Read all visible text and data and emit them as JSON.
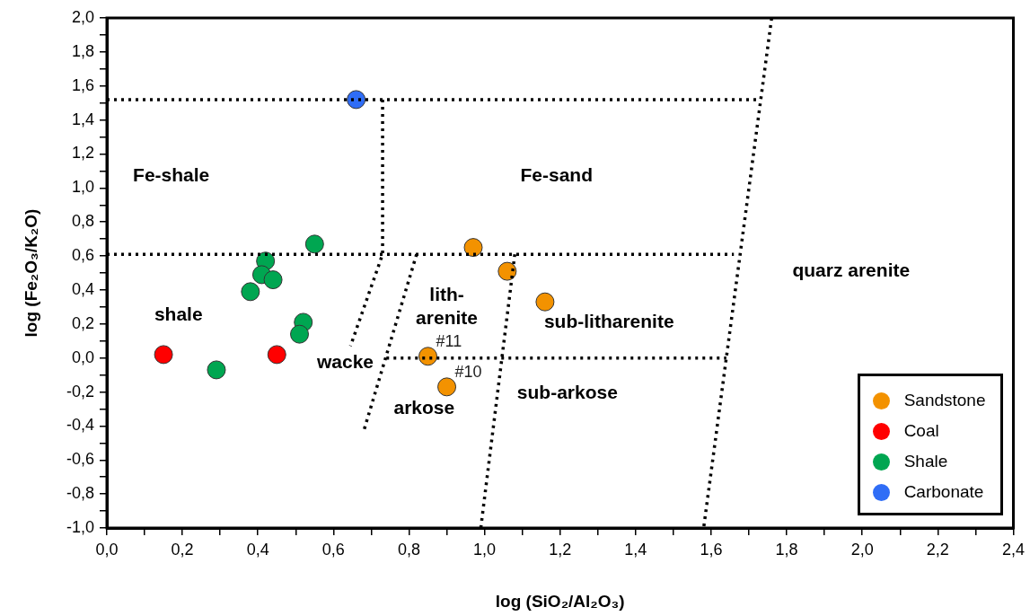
{
  "chart_data": {
    "type": "scatter",
    "xlabel": "log (SiO₂/Al₂O₃)",
    "ylabel": "log (Fe₂O₃/K₂O)",
    "xlim": [
      0,
      2.4
    ],
    "ylim": [
      -1,
      2
    ],
    "xticks": [
      {
        "value": 0,
        "label": "0,0"
      },
      {
        "value": 0.1,
        "label": null
      },
      {
        "value": 0.2,
        "label": "0,2"
      },
      {
        "value": 0.3,
        "label": null
      },
      {
        "value": 0.4,
        "label": "0,4"
      },
      {
        "value": 0.5,
        "label": null
      },
      {
        "value": 0.6,
        "label": "0,6"
      },
      {
        "value": 0.7,
        "label": null
      },
      {
        "value": 0.8,
        "label": "0,8"
      },
      {
        "value": 0.9,
        "label": null
      },
      {
        "value": 1,
        "label": "1,0"
      },
      {
        "value": 1.1,
        "label": null
      },
      {
        "value": 1.2,
        "label": "1,2"
      },
      {
        "value": 1.3,
        "label": null
      },
      {
        "value": 1.4,
        "label": "1,4"
      },
      {
        "value": 1.5,
        "label": null
      },
      {
        "value": 1.6,
        "label": "1,6"
      },
      {
        "value": 1.7,
        "label": null
      },
      {
        "value": 1.8,
        "label": "1,8"
      },
      {
        "value": 1.9,
        "label": null
      },
      {
        "value": 2,
        "label": "2,0"
      },
      {
        "value": 2.1,
        "label": null
      },
      {
        "value": 2.2,
        "label": "2,2"
      },
      {
        "value": 2.3,
        "label": null
      },
      {
        "value": 2.4,
        "label": "2,4"
      }
    ],
    "yticks": [
      {
        "value": -1,
        "label": "-1,0"
      },
      {
        "value": -0.9,
        "label": null
      },
      {
        "value": -0.8,
        "label": "-0,8"
      },
      {
        "value": -0.7,
        "label": null
      },
      {
        "value": -0.6,
        "label": "-0,6"
      },
      {
        "value": -0.5,
        "label": null
      },
      {
        "value": -0.4,
        "label": "-0,4"
      },
      {
        "value": -0.3,
        "label": null
      },
      {
        "value": -0.2,
        "label": "-0,2"
      },
      {
        "value": -0.1,
        "label": null
      },
      {
        "value": 0,
        "label": "0,0"
      },
      {
        "value": 0.1,
        "label": null
      },
      {
        "value": 0.2,
        "label": "0,2"
      },
      {
        "value": 0.3,
        "label": null
      },
      {
        "value": 0.4,
        "label": "0,4"
      },
      {
        "value": 0.5,
        "label": null
      },
      {
        "value": 0.6,
        "label": "0,6"
      },
      {
        "value": 0.7,
        "label": null
      },
      {
        "value": 0.8,
        "label": "0,8"
      },
      {
        "value": 0.9,
        "label": null
      },
      {
        "value": 1,
        "label": "1,0"
      },
      {
        "value": 1.1,
        "label": null
      },
      {
        "value": 1.2,
        "label": "1,2"
      },
      {
        "value": 1.3,
        "label": null
      },
      {
        "value": 1.4,
        "label": "1,4"
      },
      {
        "value": 1.5,
        "label": null
      },
      {
        "value": 1.6,
        "label": "1,6"
      },
      {
        "value": 1.7,
        "label": null
      },
      {
        "value": 1.8,
        "label": "1,8"
      },
      {
        "value": 1.9,
        "label": null
      },
      {
        "value": 2,
        "label": "2,0"
      }
    ],
    "grid": false,
    "legend": "bottom right",
    "marker": "circle",
    "series": [
      {
        "type": "line",
        "color": "#000000",
        "line_style": "dotted",
        "marker": "none",
        "x": [
          0,
          1.72
        ],
        "values": [
          1.52,
          1.52
        ]
      },
      {
        "type": "line",
        "color": "#000000",
        "line_style": "dotted",
        "marker": "none",
        "x": [
          0.73,
          0.73,
          0.645
        ],
        "values": [
          1.52,
          0.61,
          0.07
        ]
      },
      {
        "type": "line",
        "color": "#000000",
        "line_style": "dotted",
        "marker": "none",
        "x": [
          0,
          1.66
        ],
        "values": [
          0.61,
          0.61
        ]
      },
      {
        "type": "line",
        "color": "#000000",
        "line_style": "dotted",
        "marker": "none",
        "x": [
          0.82,
          0.68
        ],
        "values": [
          0.61,
          -0.43
        ]
      },
      {
        "type": "line",
        "color": "#000000",
        "line_style": "dotted",
        "marker": "none",
        "x": [
          0.74,
          1.64
        ],
        "values": [
          0,
          0
        ]
      },
      {
        "type": "line",
        "color": "#000000",
        "line_style": "dotted",
        "marker": "none",
        "x": [
          1.08,
          0.99
        ],
        "values": [
          0.61,
          -1
        ]
      },
      {
        "type": "line",
        "color": "#000000",
        "line_style": "dotted",
        "marker": "none",
        "x": [
          1.76,
          1.58
        ],
        "values": [
          2,
          -1
        ]
      },
      {
        "name": "Sandstone",
        "color": "#f39200",
        "x": [
          0.97,
          1.06,
          1.16,
          0.85,
          0.9
        ],
        "values": [
          0.65,
          0.51,
          0.33,
          0.01,
          -0.17
        ]
      },
      {
        "name": "Coal",
        "color": "#ff0000",
        "x": [
          0.15,
          0.45
        ],
        "values": [
          0.02,
          0.02
        ]
      },
      {
        "name": "Shale",
        "color": "#00a651",
        "x": [
          0.55,
          0.42,
          0.41,
          0.44,
          0.38,
          0.52,
          0.51,
          0.29
        ],
        "values": [
          0.67,
          0.57,
          0.49,
          0.46,
          0.39,
          0.21,
          0.14,
          -0.07
        ]
      },
      {
        "name": "Carbonate",
        "color": "#2f6df6",
        "x": [
          0.66
        ],
        "values": [
          1.52
        ]
      }
    ],
    "annotations": [
      "Fe-shale",
      "Fe-sand",
      "shale",
      "wacke",
      "lith-\narenite",
      "sub-litharenite",
      "sub-arkose",
      "arkose",
      "quarz arenite",
      {
        "text": "#11",
        "x": 0.85,
        "y": 0.01
      },
      {
        "text": "#10",
        "x": 0.9,
        "y": -0.17
      }
    ]
  }
}
